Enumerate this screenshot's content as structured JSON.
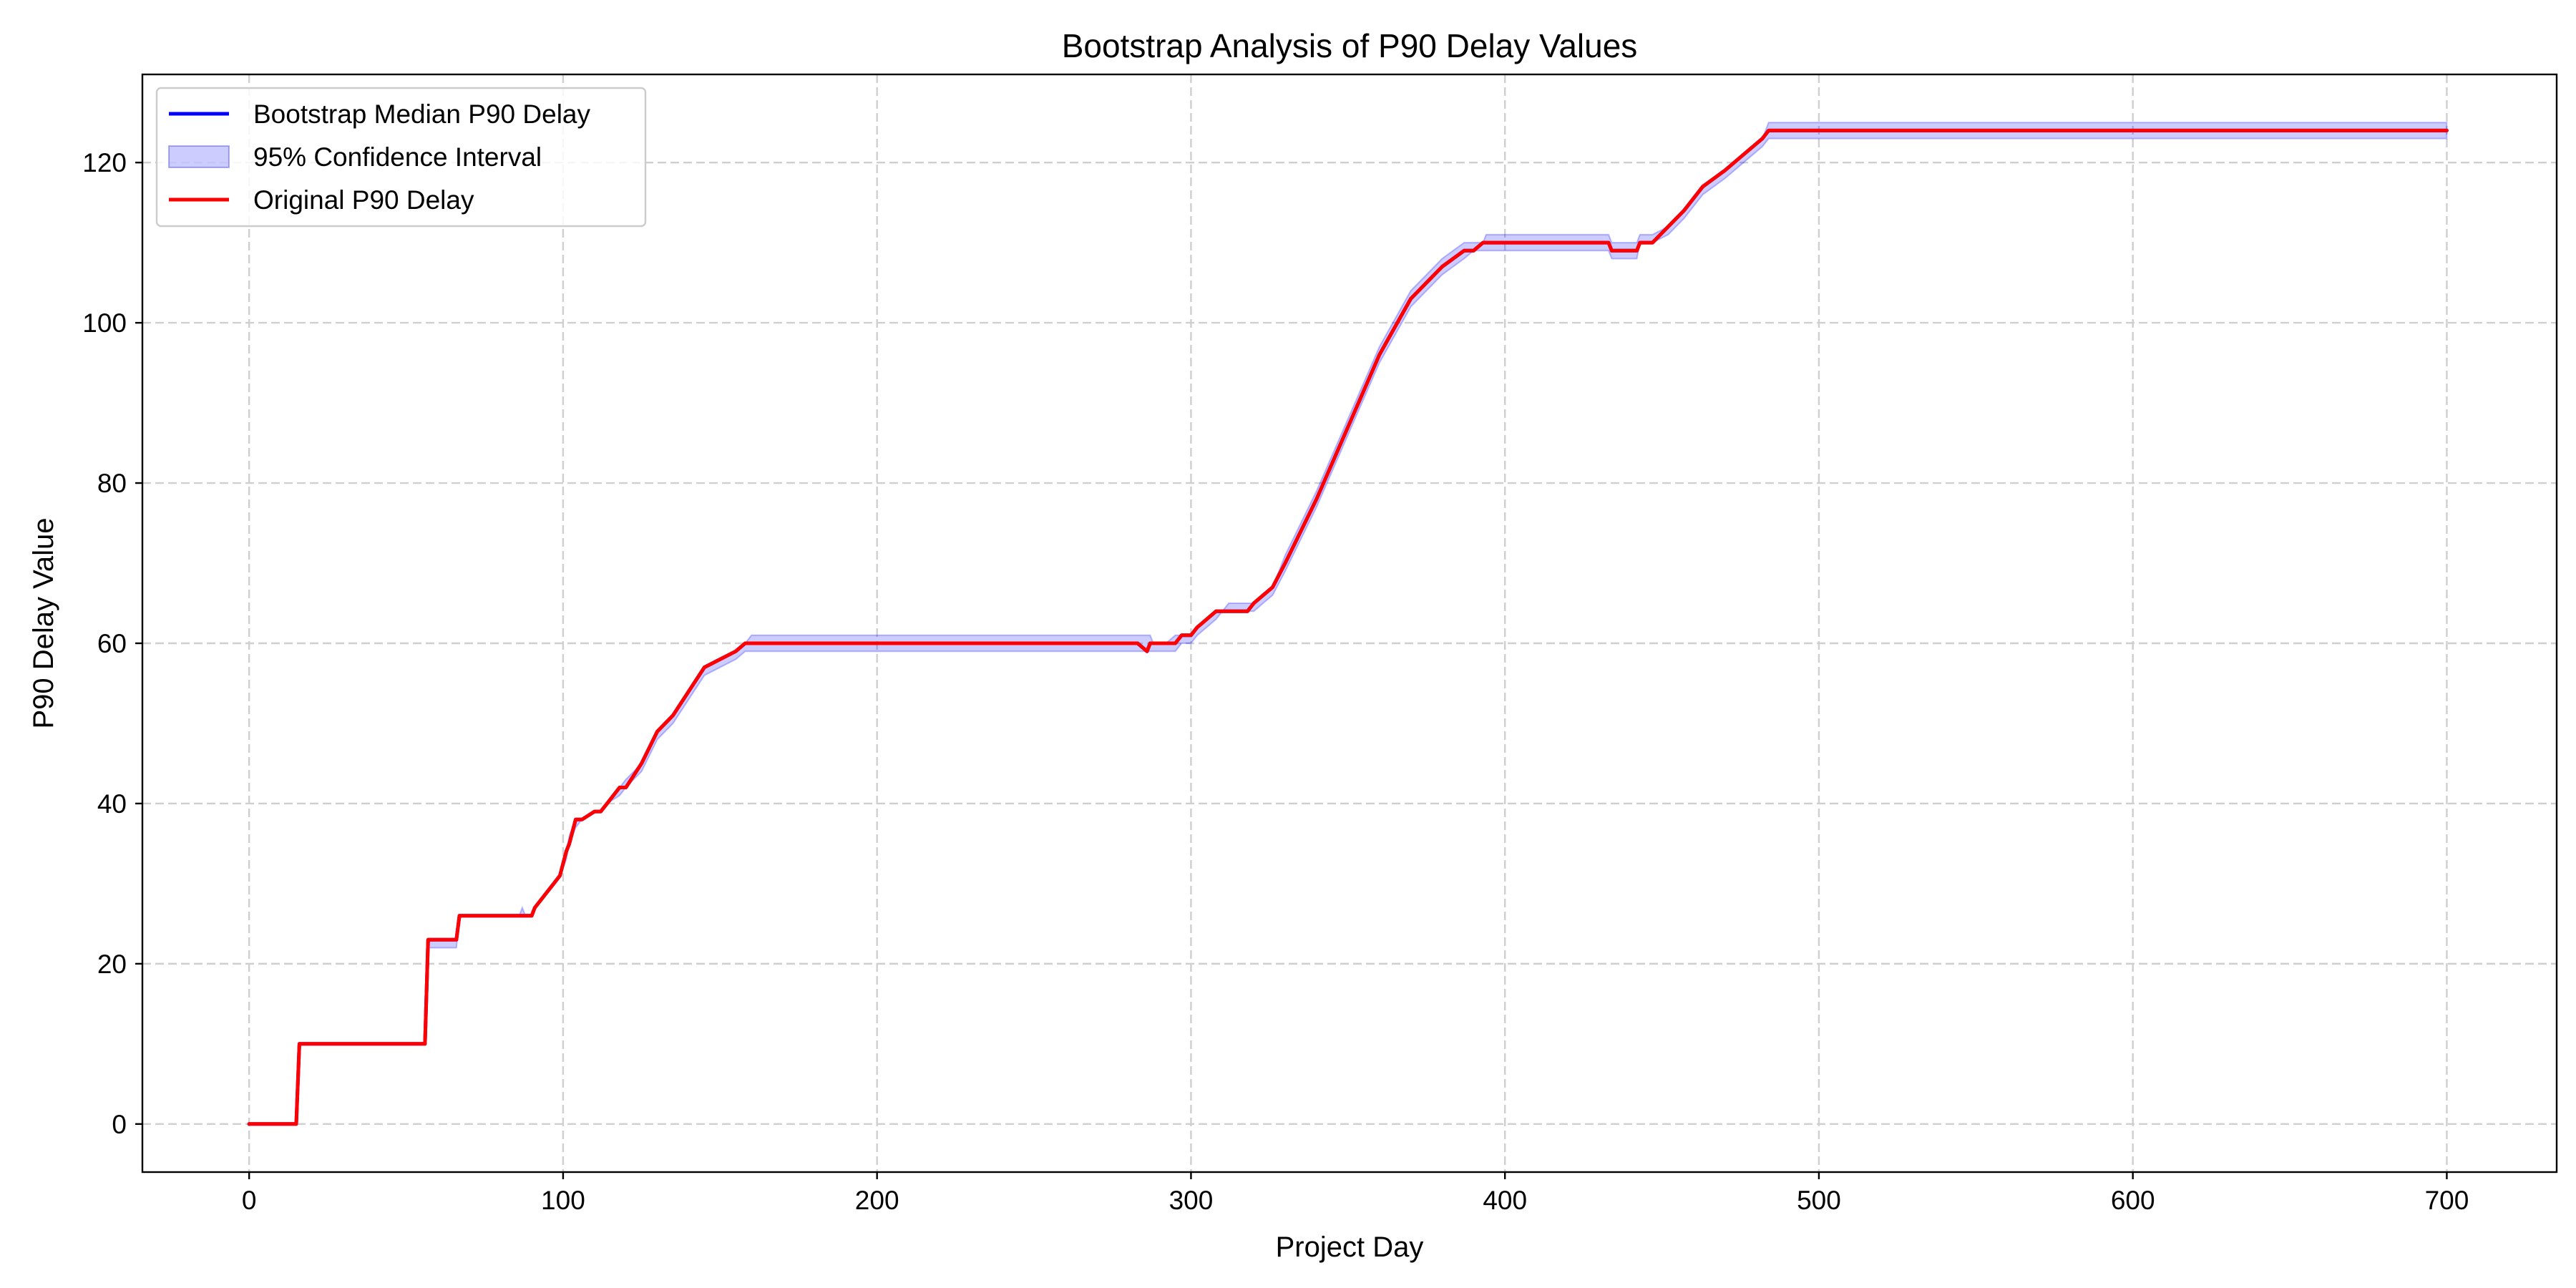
{
  "chart_data": {
    "type": "line",
    "title": "Bootstrap Analysis of P90 Delay Values",
    "xlabel": "Project Day",
    "ylabel": "P90 Delay Value",
    "xlim": [
      -34,
      735
    ],
    "ylim": [
      -6,
      131
    ],
    "xticks": [
      0,
      100,
      200,
      300,
      400,
      500,
      600,
      700
    ],
    "yticks": [
      0,
      20,
      40,
      60,
      80,
      100,
      120
    ],
    "grid": true,
    "legend_position": "top-left",
    "colors": {
      "median": "#0000ff",
      "ci_fill": "#0000ff",
      "ci_opacity": 0.2,
      "original": "#ff0000"
    },
    "series": [
      {
        "name": "Bootstrap Median P90 Delay",
        "style": "line",
        "x": [
          0,
          15,
          16,
          56,
          57,
          58,
          66,
          67,
          90,
          91,
          93,
          95,
          97,
          99,
          101,
          102,
          104,
          106,
          110,
          112,
          114,
          118,
          120,
          125,
          130,
          135,
          140,
          145,
          150,
          155,
          158,
          160,
          283,
          286,
          287,
          288,
          295,
          297,
          300,
          302,
          305,
          308,
          310,
          312,
          318,
          320,
          323,
          326,
          330,
          340,
          350,
          360,
          370,
          380,
          387,
          390,
          393,
          400,
          433,
          434,
          442,
          443,
          446,
          447,
          452,
          457,
          463,
          470,
          476,
          482,
          484,
          700
        ],
        "values": [
          0,
          0,
          10,
          10,
          23,
          23,
          23,
          26,
          26,
          27,
          28,
          29,
          30,
          31,
          34,
          35,
          38,
          38,
          39,
          39,
          40,
          42,
          42,
          45,
          49,
          51,
          54,
          57,
          58,
          59,
          60,
          60,
          60,
          59,
          60,
          60,
          60,
          61,
          61,
          62,
          63,
          64,
          64,
          64,
          64,
          65,
          66,
          67,
          70,
          78,
          87,
          96,
          103,
          107,
          109,
          109,
          110,
          110,
          110,
          109,
          109,
          110,
          110,
          110,
          112,
          114,
          117,
          119,
          121,
          123,
          124,
          124
        ]
      },
      {
        "name": "95% Confidence Interval",
        "style": "band",
        "x": [
          0,
          15,
          16,
          56,
          57,
          58,
          66,
          67,
          86,
          87,
          88,
          89,
          90,
          91,
          93,
          95,
          97,
          99,
          101,
          102,
          104,
          106,
          110,
          112,
          114,
          118,
          120,
          125,
          130,
          135,
          140,
          145,
          150,
          155,
          158,
          160,
          283,
          286,
          287,
          288,
          292,
          295,
          297,
          300,
          302,
          305,
          308,
          310,
          312,
          318,
          320,
          323,
          326,
          330,
          340,
          350,
          360,
          370,
          380,
          387,
          390,
          393,
          394,
          400,
          433,
          434,
          442,
          443,
          446,
          447,
          452,
          457,
          463,
          470,
          476,
          482,
          484,
          700
        ],
        "lower": [
          0,
          0,
          10,
          10,
          22,
          22,
          22,
          26,
          26,
          26,
          26,
          26,
          26,
          27,
          28,
          29,
          30,
          31,
          33,
          35,
          37,
          38,
          39,
          39,
          40,
          41,
          42,
          44,
          48,
          50,
          53,
          56,
          57,
          58,
          59,
          59,
          59,
          59,
          59,
          59,
          59,
          59,
          60,
          60,
          61,
          62,
          63,
          64,
          64,
          64,
          64,
          65,
          66,
          69,
          77,
          86,
          95,
          102,
          106,
          108,
          109,
          109,
          109,
          109,
          109,
          108,
          108,
          110,
          110,
          110,
          111,
          113,
          116,
          118,
          120,
          122,
          123,
          123
        ],
        "upper": [
          0,
          0,
          10,
          10,
          23,
          23,
          23,
          26,
          26,
          27,
          26,
          26,
          26,
          27,
          28,
          29,
          30,
          31,
          34,
          36,
          38,
          38,
          39,
          39,
          40,
          42,
          43,
          45,
          49,
          51,
          54,
          57,
          58,
          59,
          60,
          61,
          61,
          61,
          61,
          60,
          60,
          61,
          61,
          61,
          62,
          63,
          64,
          64,
          65,
          65,
          65,
          66,
          67,
          71,
          79,
          88,
          97,
          104,
          108,
          110,
          110,
          110,
          111,
          111,
          111,
          110,
          110,
          111,
          111,
          111,
          112,
          114,
          117,
          119,
          121,
          123,
          125,
          125
        ]
      },
      {
        "name": "Original P90 Delay",
        "style": "line",
        "x": [
          0,
          15,
          16,
          56,
          57,
          58,
          66,
          67,
          90,
          91,
          93,
          95,
          97,
          99,
          101,
          102,
          104,
          106,
          110,
          112,
          114,
          118,
          120,
          125,
          130,
          135,
          140,
          145,
          150,
          155,
          158,
          160,
          283,
          286,
          287,
          288,
          295,
          297,
          300,
          302,
          305,
          308,
          310,
          312,
          318,
          320,
          323,
          326,
          330,
          340,
          350,
          360,
          370,
          380,
          387,
          390,
          393,
          400,
          433,
          434,
          442,
          443,
          446,
          447,
          452,
          457,
          463,
          470,
          476,
          482,
          484,
          700
        ],
        "values": [
          0,
          0,
          10,
          10,
          23,
          23,
          23,
          26,
          26,
          27,
          28,
          29,
          30,
          31,
          34,
          35,
          38,
          38,
          39,
          39,
          40,
          42,
          42,
          45,
          49,
          51,
          54,
          57,
          58,
          59,
          60,
          60,
          60,
          59,
          60,
          60,
          60,
          61,
          61,
          62,
          63,
          64,
          64,
          64,
          64,
          65,
          66,
          67,
          70,
          78,
          87,
          96,
          103,
          107,
          109,
          109,
          110,
          110,
          110,
          109,
          109,
          110,
          110,
          110,
          112,
          114,
          117,
          119,
          121,
          123,
          124,
          124
        ]
      }
    ]
  }
}
